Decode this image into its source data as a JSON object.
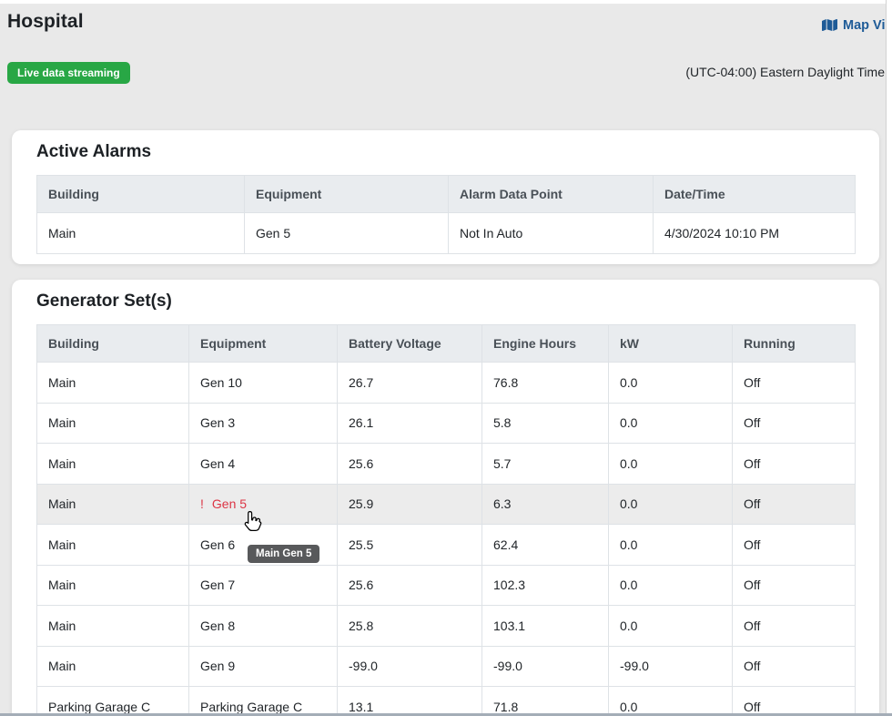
{
  "page": {
    "title": "Hospital",
    "map_view_label": "Map View",
    "live_badge": "Live data streaming",
    "timezone": "(UTC-04:00) Eastern Daylight Time"
  },
  "active_alarms": {
    "title": "Active Alarms",
    "columns": [
      "Building",
      "Equipment",
      "Alarm Data Point",
      "Date/Time"
    ],
    "rows": [
      {
        "cells": [
          "Main",
          "Gen 5",
          "Not In Auto",
          "4/30/2024 10:10 PM"
        ],
        "alarm": false,
        "highlighted": false
      }
    ]
  },
  "generator_sets": {
    "title": "Generator Set(s)",
    "columns": [
      "Building",
      "Equipment",
      "Battery Voltage",
      "Engine Hours",
      "kW",
      "Running"
    ],
    "rows": [
      {
        "cells": [
          "Main",
          "Gen 10",
          "26.7",
          "76.8",
          "0.0",
          "Off"
        ],
        "alarm": false,
        "highlighted": false
      },
      {
        "cells": [
          "Main",
          "Gen 3",
          "26.1",
          "5.8",
          "0.0",
          "Off"
        ],
        "alarm": false,
        "highlighted": false
      },
      {
        "cells": [
          "Main",
          "Gen 4",
          "25.6",
          "5.7",
          "0.0",
          "Off"
        ],
        "alarm": false,
        "highlighted": false
      },
      {
        "cells": [
          "Main",
          "Gen 5",
          "25.9",
          "6.3",
          "0.0",
          "Off"
        ],
        "alarm": true,
        "alarm_marker": "!",
        "highlighted": true
      },
      {
        "cells": [
          "Main",
          "Gen 6",
          "25.5",
          "62.4",
          "0.0",
          "Off"
        ],
        "alarm": false,
        "highlighted": false
      },
      {
        "cells": [
          "Main",
          "Gen 7",
          "25.6",
          "102.3",
          "0.0",
          "Off"
        ],
        "alarm": false,
        "highlighted": false
      },
      {
        "cells": [
          "Main",
          "Gen 8",
          "25.8",
          "103.1",
          "0.0",
          "Off"
        ],
        "alarm": false,
        "highlighted": false
      },
      {
        "cells": [
          "Main",
          "Gen 9",
          "-99.0",
          "-99.0",
          "-99.0",
          "Off"
        ],
        "alarm": false,
        "highlighted": false
      },
      {
        "cells": [
          "Parking Garage C",
          "Parking Garage C",
          "13.1",
          "71.8",
          "0.0",
          "Off"
        ],
        "alarm": false,
        "highlighted": false
      }
    ]
  },
  "tooltip": {
    "text": "Main Gen 5"
  },
  "colors": {
    "accent_blue": "#1e5b97",
    "badge_green": "#28a745",
    "alarm_red": "#dc3545",
    "page_background": "#e9e9e9",
    "table_header_bg": "#e9ecef",
    "highlight_row_bg": "#ececec"
  }
}
